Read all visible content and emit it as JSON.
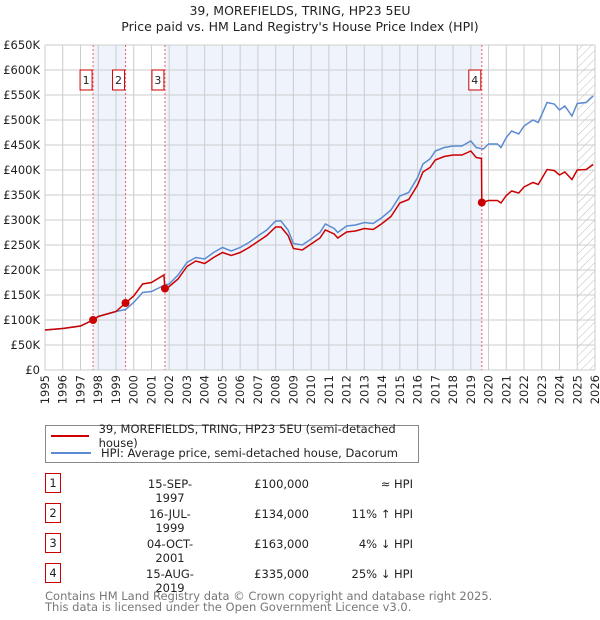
{
  "chart_data": {
    "type": "line",
    "title": "39, MOREFIELDS, TRING, HP23 5EU",
    "subtitle": "Price paid vs. HM Land Registry's House Price Index (HPI)",
    "xlim": [
      1995,
      2026
    ],
    "ylim": [
      0,
      650000
    ],
    "y_ticks": [
      {
        "v": 0,
        "label": "£0"
      },
      {
        "v": 50000,
        "label": "£50K"
      },
      {
        "v": 100000,
        "label": "£100K"
      },
      {
        "v": 150000,
        "label": "£150K"
      },
      {
        "v": 200000,
        "label": "£200K"
      },
      {
        "v": 250000,
        "label": "£250K"
      },
      {
        "v": 300000,
        "label": "£300K"
      },
      {
        "v": 350000,
        "label": "£350K"
      },
      {
        "v": 400000,
        "label": "£400K"
      },
      {
        "v": 450000,
        "label": "£450K"
      },
      {
        "v": 500000,
        "label": "£500K"
      },
      {
        "v": 550000,
        "label": "£550K"
      },
      {
        "v": 600000,
        "label": "£600K"
      },
      {
        "v": 650000,
        "label": "£650K"
      }
    ],
    "x_ticks": [
      "1995",
      "1996",
      "1997",
      "1998",
      "1999",
      "2000",
      "2001",
      "2002",
      "2003",
      "2004",
      "2005",
      "2006",
      "2007",
      "2008",
      "2009",
      "2010",
      "2011",
      "2012",
      "2013",
      "2014",
      "2015",
      "2016",
      "2017",
      "2018",
      "2019",
      "2020",
      "2021",
      "2022",
      "2023",
      "2024",
      "2025",
      "2026"
    ],
    "grid": true,
    "shaded_ranges": [
      [
        1997.71,
        1999.54
      ],
      [
        2001.76,
        2019.62
      ]
    ],
    "forecast_hatch_from": 2025.0,
    "series": [
      {
        "name": "39, MOREFIELDS, TRING, HP23 5EU (semi-detached house)",
        "color": "#cc0000",
        "unit": "thousand GBP",
        "points": [
          [
            1995,
            80
          ],
          [
            1996,
            83
          ],
          [
            1997,
            88
          ],
          [
            1997.71,
            100
          ],
          [
            1998,
            107
          ],
          [
            1999,
            117
          ],
          [
            1999.54,
            134
          ],
          [
            2000,
            148
          ],
          [
            2000.5,
            172
          ],
          [
            2001,
            175
          ],
          [
            2001.7,
            190
          ],
          [
            2001.76,
            163
          ],
          [
            2002,
            167
          ],
          [
            2002.5,
            182
          ],
          [
            2003,
            207
          ],
          [
            2003.5,
            218
          ],
          [
            2004,
            213
          ],
          [
            2004.5,
            225
          ],
          [
            2005,
            235
          ],
          [
            2005.5,
            229
          ],
          [
            2006,
            235
          ],
          [
            2006.5,
            245
          ],
          [
            2007,
            257
          ],
          [
            2007.5,
            269
          ],
          [
            2008,
            286
          ],
          [
            2008.3,
            286
          ],
          [
            2008.7,
            269
          ],
          [
            2009,
            243
          ],
          [
            2009.5,
            240
          ],
          [
            2010,
            252
          ],
          [
            2010.5,
            264
          ],
          [
            2010.8,
            280
          ],
          [
            2011.3,
            272
          ],
          [
            2011.5,
            264
          ],
          [
            2012,
            276
          ],
          [
            2012.5,
            278
          ],
          [
            2013,
            283
          ],
          [
            2013.5,
            281
          ],
          [
            2014,
            293
          ],
          [
            2014.5,
            307
          ],
          [
            2015,
            334
          ],
          [
            2015.5,
            341
          ],
          [
            2016,
            370
          ],
          [
            2016.3,
            396
          ],
          [
            2016.7,
            405
          ],
          [
            2017,
            420
          ],
          [
            2017.5,
            427
          ],
          [
            2018,
            430
          ],
          [
            2018.5,
            430
          ],
          [
            2019,
            438
          ],
          [
            2019.3,
            425
          ],
          [
            2019.6,
            423
          ],
          [
            2019.62,
            335
          ],
          [
            2020,
            339
          ],
          [
            2020.5,
            339
          ],
          [
            2020.7,
            334
          ],
          [
            2021,
            349
          ],
          [
            2021.3,
            358
          ],
          [
            2021.7,
            354
          ],
          [
            2022,
            366
          ],
          [
            2022.5,
            375
          ],
          [
            2022.8,
            371
          ],
          [
            2023.3,
            401
          ],
          [
            2023.7,
            399
          ],
          [
            2024,
            390
          ],
          [
            2024.3,
            396
          ],
          [
            2024.7,
            381
          ],
          [
            2025,
            400
          ],
          [
            2025.5,
            401
          ],
          [
            2025.9,
            411
          ]
        ]
      },
      {
        "name": "HPI: Average price, semi-detached house, Dacorum",
        "color": "#5b8bd0",
        "unit": "thousand GBP",
        "points": [
          [
            1995,
            80
          ],
          [
            1996,
            83
          ],
          [
            1997,
            88
          ],
          [
            1997.71,
            100
          ],
          [
            1998,
            107
          ],
          [
            1999,
            117
          ],
          [
            1999.54,
            121
          ],
          [
            2000,
            135
          ],
          [
            2000.5,
            155
          ],
          [
            2001,
            157
          ],
          [
            2001.76,
            170
          ],
          [
            2002,
            172
          ],
          [
            2002.5,
            190
          ],
          [
            2003,
            215
          ],
          [
            2003.5,
            225
          ],
          [
            2004,
            222
          ],
          [
            2004.5,
            235
          ],
          [
            2005,
            245
          ],
          [
            2005.5,
            238
          ],
          [
            2006,
            245
          ],
          [
            2006.5,
            255
          ],
          [
            2007,
            268
          ],
          [
            2007.5,
            280
          ],
          [
            2008,
            298
          ],
          [
            2008.3,
            298
          ],
          [
            2008.7,
            280
          ],
          [
            2009,
            253
          ],
          [
            2009.5,
            250
          ],
          [
            2010,
            262
          ],
          [
            2010.5,
            275
          ],
          [
            2010.8,
            292
          ],
          [
            2011.3,
            283
          ],
          [
            2011.5,
            275
          ],
          [
            2012,
            288
          ],
          [
            2012.5,
            290
          ],
          [
            2013,
            295
          ],
          [
            2013.5,
            293
          ],
          [
            2014,
            305
          ],
          [
            2014.5,
            320
          ],
          [
            2015,
            348
          ],
          [
            2015.5,
            355
          ],
          [
            2016,
            385
          ],
          [
            2016.3,
            412
          ],
          [
            2016.7,
            422
          ],
          [
            2017,
            438
          ],
          [
            2017.5,
            445
          ],
          [
            2018,
            448
          ],
          [
            2018.5,
            448
          ],
          [
            2019,
            458
          ],
          [
            2019.3,
            445
          ],
          [
            2019.7,
            442
          ],
          [
            2020,
            452
          ],
          [
            2020.5,
            452
          ],
          [
            2020.7,
            445
          ],
          [
            2021,
            465
          ],
          [
            2021.3,
            478
          ],
          [
            2021.7,
            472
          ],
          [
            2022,
            488
          ],
          [
            2022.5,
            500
          ],
          [
            2022.8,
            495
          ],
          [
            2023.3,
            535
          ],
          [
            2023.7,
            532
          ],
          [
            2024,
            520
          ],
          [
            2024.3,
            528
          ],
          [
            2024.7,
            508
          ],
          [
            2025,
            533
          ],
          [
            2025.5,
            535
          ],
          [
            2025.9,
            548
          ]
        ]
      }
    ],
    "sales": [
      {
        "n": "1",
        "x": 1997.71,
        "price": 100
      },
      {
        "n": "2",
        "x": 1999.54,
        "price": 134
      },
      {
        "n": "3",
        "x": 2001.76,
        "price": 163
      },
      {
        "n": "4",
        "x": 2019.62,
        "price": 335
      }
    ]
  },
  "legend": {
    "red": "39, MOREFIELDS, TRING, HP23 5EU (semi-detached house)",
    "blue": "HPI: Average price, semi-detached house, Dacorum"
  },
  "transactions": [
    {
      "n": "1",
      "date": "15-SEP-1997",
      "price": "£100,000",
      "rel": "≈ HPI"
    },
    {
      "n": "2",
      "date": "16-JUL-1999",
      "price": "£134,000",
      "rel": "11% ↑ HPI"
    },
    {
      "n": "3",
      "date": "04-OCT-2001",
      "price": "£163,000",
      "rel": "4% ↓ HPI"
    },
    {
      "n": "4",
      "date": "15-AUG-2019",
      "price": "£335,000",
      "rel": "25% ↓ HPI"
    }
  ],
  "footer": {
    "line1": "Contains HM Land Registry data © Crown copyright and database right 2025.",
    "line2": "This data is licensed under the Open Government Licence v3.0."
  }
}
